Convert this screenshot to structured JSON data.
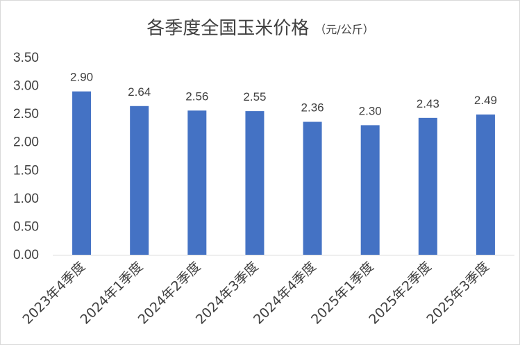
{
  "chart_data": {
    "type": "bar",
    "title": "各季度全国玉米价格",
    "unit": "（元/公斤）",
    "categories": [
      "2023年4季度",
      "2024年1季度",
      "2024年2季度",
      "2024年3季度",
      "2024年4季度",
      "2025年1季度",
      "2025年2季度",
      "2025年3季度"
    ],
    "values": [
      2.9,
      2.64,
      2.56,
      2.55,
      2.36,
      2.3,
      2.43,
      2.49
    ],
    "value_labels": [
      "2.90",
      "2.64",
      "2.56",
      "2.55",
      "2.36",
      "2.30",
      "2.43",
      "2.49"
    ],
    "ylim": [
      0,
      3.5
    ],
    "yticks": [
      "0.00",
      "0.50",
      "1.00",
      "1.50",
      "2.00",
      "2.50",
      "3.00",
      "3.50"
    ],
    "xlabel": "",
    "ylabel": "",
    "grid": false,
    "legend": "none",
    "colors": {
      "bar": "#4472c4",
      "axis": "#d9d9d9",
      "text": "#404040"
    }
  }
}
